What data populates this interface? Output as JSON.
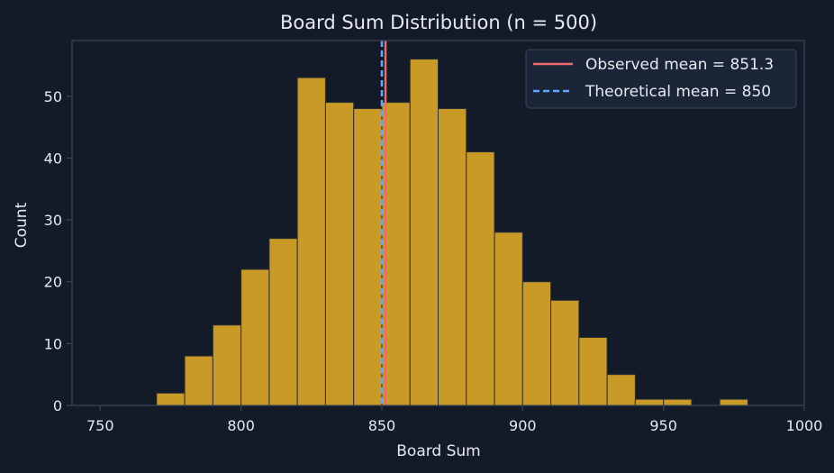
{
  "chart_data": {
    "type": "bar",
    "subtype": "histogram",
    "title": "Board Sum Distribution (n = 500)",
    "xlabel": "Board Sum",
    "ylabel": "Count",
    "xlim": [
      740,
      1000
    ],
    "ylim": [
      0,
      59
    ],
    "xticks": [
      750,
      800,
      850,
      900,
      950,
      1000
    ],
    "yticks": [
      0,
      10,
      20,
      30,
      40,
      50
    ],
    "bins": [
      {
        "start": 770,
        "end": 780,
        "count": 2
      },
      {
        "start": 780,
        "end": 790,
        "count": 8
      },
      {
        "start": 790,
        "end": 800,
        "count": 13
      },
      {
        "start": 800,
        "end": 810,
        "count": 22
      },
      {
        "start": 810,
        "end": 820,
        "count": 27
      },
      {
        "start": 820,
        "end": 830,
        "count": 53
      },
      {
        "start": 830,
        "end": 840,
        "count": 49
      },
      {
        "start": 840,
        "end": 850,
        "count": 48
      },
      {
        "start": 850,
        "end": 860,
        "count": 49
      },
      {
        "start": 860,
        "end": 870,
        "count": 56
      },
      {
        "start": 870,
        "end": 880,
        "count": 48
      },
      {
        "start": 880,
        "end": 890,
        "count": 41
      },
      {
        "start": 890,
        "end": 900,
        "count": 28
      },
      {
        "start": 900,
        "end": 910,
        "count": 20
      },
      {
        "start": 910,
        "end": 920,
        "count": 17
      },
      {
        "start": 920,
        "end": 930,
        "count": 11
      },
      {
        "start": 930,
        "end": 940,
        "count": 5
      },
      {
        "start": 940,
        "end": 950,
        "count": 1
      },
      {
        "start": 950,
        "end": 960,
        "count": 1
      },
      {
        "start": 960,
        "end": 970,
        "count": 0
      },
      {
        "start": 970,
        "end": 980,
        "count": 1
      }
    ],
    "lines": [
      {
        "name": "Observed mean = 851.3",
        "x": 851.3,
        "style": "solid",
        "color": "#f06a6a"
      },
      {
        "name": "Theoretical mean = 850",
        "x": 850,
        "style": "dashed",
        "color": "#5fa6ff"
      }
    ],
    "legend_position": "top-right",
    "grid": false,
    "colors": {
      "background": "#131a28",
      "bar_fill": "#c99a26",
      "bar_edge": "#2a2e35",
      "axes_edge": "#3a4556",
      "text": "#e6e9ef",
      "legend_bg": "#1c2738"
    }
  }
}
